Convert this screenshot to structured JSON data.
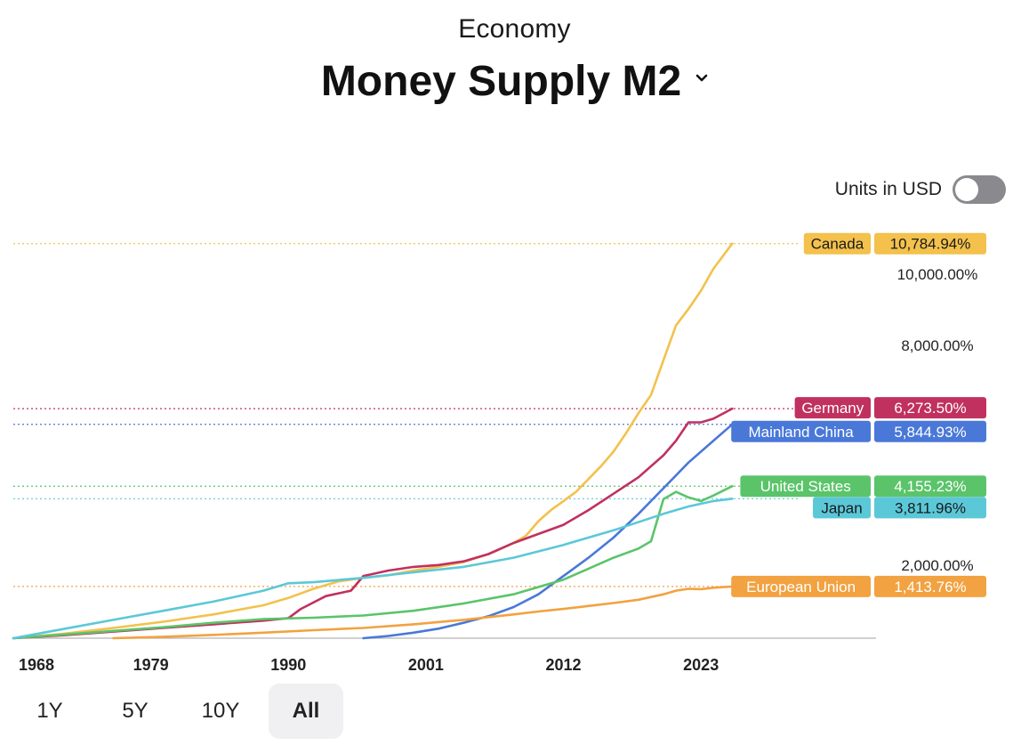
{
  "header": {
    "category": "Economy",
    "title": "Money Supply M2"
  },
  "controls": {
    "units_label": "Units in USD",
    "units_toggle_on": false
  },
  "range_buttons": [
    {
      "label": "1Y",
      "active": false
    },
    {
      "label": "5Y",
      "active": false
    },
    {
      "label": "10Y",
      "active": false
    },
    {
      "label": "All",
      "active": true
    }
  ],
  "chart_data": {
    "type": "line",
    "title": "Money Supply M2",
    "xlabel": "",
    "ylabel": "",
    "x_ticks": [
      1968,
      1979,
      1990,
      2001,
      2012,
      2023
    ],
    "y_ticks": [
      {
        "value": 2000,
        "label": "2,000.00%"
      },
      {
        "value": 8000,
        "label": "8,000.00%"
      },
      {
        "value": 10000,
        "label": "10,000.00%"
      }
    ],
    "xlim": [
      1968,
      2037
    ],
    "ylim": [
      0,
      10900
    ],
    "grid": false,
    "series": [
      {
        "name": "Canada",
        "color": "#f3c14c",
        "end_label": "10,784.94%",
        "x": [
          1968,
          1972,
          1976,
          1980,
          1984,
          1988,
          1990,
          1992,
          1994,
          1996,
          1998,
          2000,
          2002,
          2004,
          2006,
          2008,
          2009,
          2010,
          2011,
          2012,
          2013,
          2014,
          2015,
          2016,
          2017,
          2018,
          2019,
          2020,
          2021,
          2022,
          2023,
          2024,
          2025.5
        ],
        "y": [
          0,
          120,
          280,
          450,
          650,
          900,
          1100,
          1350,
          1550,
          1650,
          1720,
          1850,
          1950,
          2080,
          2300,
          2600,
          2800,
          3200,
          3500,
          3750,
          4000,
          4350,
          4700,
          5100,
          5600,
          6150,
          6650,
          7600,
          8550,
          9000,
          9500,
          10100,
          10785
        ]
      },
      {
        "name": "Germany",
        "color": "#c0315f",
        "end_label": "6,273.50%",
        "x": [
          1968,
          1972,
          1976,
          1980,
          1984,
          1988,
          1990,
          1991,
          1993,
          1995,
          1996,
          1998,
          2000,
          2002,
          2004,
          2006,
          2008,
          2010,
          2012,
          2014,
          2016,
          2018,
          2020,
          2021,
          2022,
          2023,
          2024,
          2025.5
        ],
        "y": [
          0,
          80,
          180,
          280,
          380,
          480,
          550,
          800,
          1150,
          1300,
          1700,
          1850,
          1950,
          2000,
          2100,
          2300,
          2600,
          2850,
          3100,
          3500,
          3950,
          4400,
          5000,
          5400,
          5900,
          5900,
          6000,
          6274
        ]
      },
      {
        "name": "Mainland China",
        "color": "#4a78d8",
        "end_label": "5,844.93%",
        "x": [
          1996,
          1998,
          2000,
          2002,
          2004,
          2006,
          2008,
          2010,
          2012,
          2014,
          2016,
          2018,
          2020,
          2022,
          2024,
          2025.5
        ],
        "y": [
          0,
          60,
          150,
          260,
          420,
          600,
          850,
          1200,
          1700,
          2200,
          2750,
          3400,
          4100,
          4800,
          5400,
          5845
        ]
      },
      {
        "name": "United States",
        "color": "#5bc46a",
        "end_label": "4,155.23%",
        "x": [
          1968,
          1972,
          1976,
          1980,
          1984,
          1988,
          1992,
          1996,
          2000,
          2004,
          2008,
          2010,
          2012,
          2014,
          2016,
          2018,
          2019,
          2020,
          2021,
          2022,
          2023,
          2024,
          2025.5
        ],
        "y": [
          0,
          100,
          200,
          300,
          420,
          520,
          560,
          620,
          750,
          950,
          1200,
          1400,
          1600,
          1900,
          2200,
          2450,
          2650,
          3800,
          4000,
          3850,
          3750,
          3900,
          4155
        ]
      },
      {
        "name": "Japan",
        "color": "#5bc8d8",
        "end_label": "3,811.96%",
        "x": [
          1968,
          1972,
          1976,
          1980,
          1984,
          1988,
          1990,
          1992,
          1996,
          2000,
          2004,
          2008,
          2012,
          2016,
          2020,
          2022,
          2024,
          2025.5
        ],
        "y": [
          0,
          250,
          500,
          750,
          1000,
          1300,
          1500,
          1530,
          1650,
          1800,
          1950,
          2200,
          2550,
          2950,
          3400,
          3600,
          3750,
          3812
        ]
      },
      {
        "name": "European Union",
        "color": "#f2a240",
        "end_label": "1,413.76%",
        "x": [
          1976,
          1980,
          1984,
          1988,
          1992,
          1996,
          2000,
          2004,
          2008,
          2010,
          2012,
          2014,
          2016,
          2018,
          2020,
          2021,
          2022,
          2023,
          2024,
          2025.5
        ],
        "y": [
          0,
          40,
          90,
          150,
          220,
          280,
          380,
          500,
          650,
          730,
          800,
          880,
          960,
          1050,
          1200,
          1300,
          1350,
          1340,
          1380,
          1414
        ]
      }
    ]
  }
}
